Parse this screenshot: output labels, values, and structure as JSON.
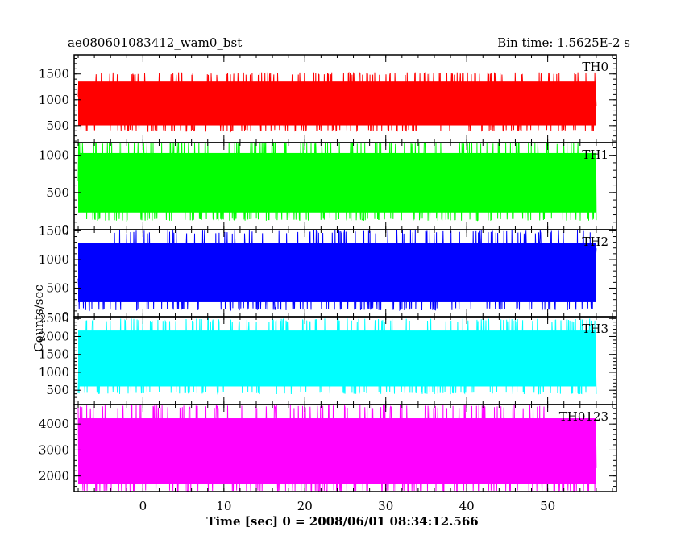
{
  "figure": {
    "title": "ae080601083412_wam0_bst",
    "bin_time": "Bin time: 1.5625E-2 s",
    "ylabel": "Counts/sec",
    "xlabel": "Time [sec] 0 = 2008/06/01 08:34:12.566"
  },
  "chart_data": [
    {
      "type": "line",
      "name": "TH0",
      "color": "#ff0000",
      "xlim": [
        -8.5,
        58.5
      ],
      "ylim": [
        170,
        1870
      ],
      "yticks": [
        500,
        1000,
        1500
      ],
      "ytick_labels": [
        "500",
        "1000",
        "1500"
      ],
      "x_range": [
        -8,
        56
      ],
      "typical_range": [
        420,
        1480
      ],
      "mean": 860,
      "grid": false
    },
    {
      "type": "line",
      "name": "TH1",
      "color": "#00ff00",
      "xlim": [
        -8.5,
        58.5
      ],
      "ylim": [
        0,
        1170
      ],
      "yticks": [
        0,
        500,
        1000
      ],
      "ytick_labels": [
        "0",
        "500",
        "1000"
      ],
      "x_range": [
        -8,
        56
      ],
      "typical_range": [
        150,
        1150
      ],
      "mean": 420,
      "grid": false
    },
    {
      "type": "line",
      "name": "TH2",
      "color": "#0000ff",
      "xlim": [
        -8.5,
        58.5
      ],
      "ylim": [
        0,
        1520
      ],
      "yticks": [
        0,
        500,
        1000,
        1500
      ],
      "ytick_labels": [
        "0",
        "500",
        "1000",
        "1500"
      ],
      "x_range": [
        -8,
        56
      ],
      "typical_range": [
        150,
        1450
      ],
      "mean": 600,
      "grid": false
    },
    {
      "type": "line",
      "name": "TH3",
      "color": "#00ffff",
      "xlim": [
        -8.5,
        58.5
      ],
      "ylim": [
        100,
        2550
      ],
      "yticks": [
        500,
        1000,
        1500,
        2000,
        2500
      ],
      "ytick_labels": [
        "500",
        "1000",
        "1500",
        "2000",
        "2500"
      ],
      "x_range": [
        -8,
        56
      ],
      "typical_range": [
        450,
        2400
      ],
      "mean": 1150,
      "grid": false
    },
    {
      "type": "line",
      "name": "TH0123",
      "color": "#ff00ff",
      "xlim": [
        -8.5,
        58.5
      ],
      "ylim": [
        1400,
        4750
      ],
      "yticks": [
        2000,
        3000,
        4000
      ],
      "ytick_labels": [
        "2000",
        "3000",
        "4000"
      ],
      "x_range": [
        -8,
        56
      ],
      "typical_range": [
        1450,
        4600
      ],
      "mean": 2900,
      "grid": false
    }
  ],
  "x_axis": {
    "ticks": [
      0,
      10,
      20,
      30,
      40,
      50
    ],
    "tick_labels": [
      "0",
      "10",
      "20",
      "30",
      "40",
      "50"
    ]
  }
}
